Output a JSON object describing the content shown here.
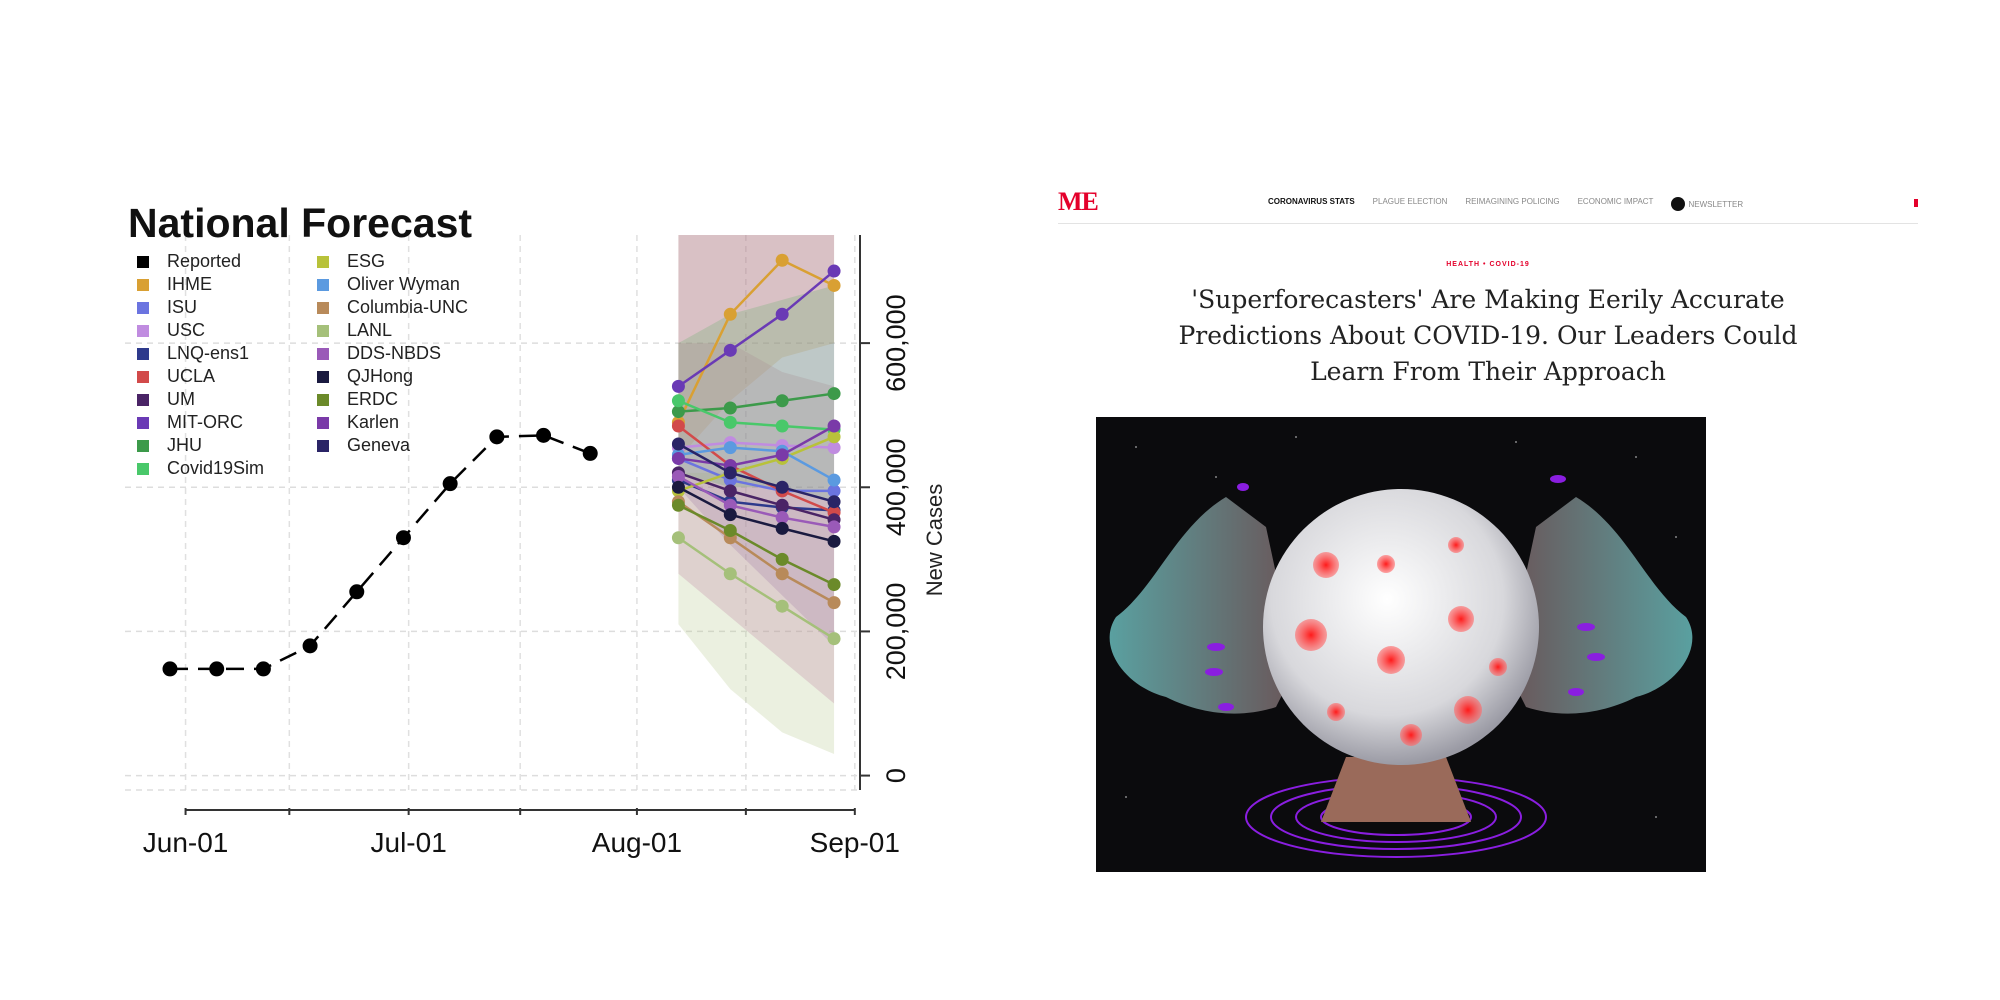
{
  "chart_data": {
    "type": "line",
    "title": "National Forecast",
    "ylabel": "New Cases",
    "xlabel": "",
    "x_ticks": [
      "Jun-01",
      "Jul-01",
      "Aug-01",
      "Sep-01"
    ],
    "y_ticks": [
      "0",
      "200,000",
      "400,000",
      "600,000"
    ],
    "xlim": [
      0,
      13.3
    ],
    "ylim": [
      -20000,
      750000
    ],
    "grid": true,
    "legend_position": "top-left",
    "reported": {
      "name": "Reported",
      "color": "#000000",
      "x": [
        0,
        1,
        2,
        3,
        4,
        5,
        6,
        7,
        8,
        9,
        10
      ],
      "y": [
        148000,
        148000,
        148000,
        180000,
        255000,
        330000,
        405000,
        470000,
        472000,
        447000,
        null
      ]
    },
    "forecast_x": [
      9.8,
      10.8,
      11.8,
      12.8
    ],
    "series": [
      {
        "name": "IHME",
        "color": "#d9a033",
        "values": [
          490000,
          640000,
          715000,
          680000
        ]
      },
      {
        "name": "ISU",
        "color": "#6b74e0",
        "values": [
          440000,
          410000,
          395000,
          395000
        ]
      },
      {
        "name": "USC",
        "color": "#c08ce0",
        "values": [
          455000,
          462000,
          458000,
          455000
        ]
      },
      {
        "name": "LNQ-ens1",
        "color": "#2e3a8c",
        "values": [
          410000,
          380000,
          372000,
          368000
        ]
      },
      {
        "name": "UCLA",
        "color": "#d24a4a",
        "values": [
          485000,
          430000,
          395000,
          365000
        ]
      },
      {
        "name": "UM",
        "color": "#4a2466",
        "values": [
          420000,
          395000,
          375000,
          355000
        ]
      },
      {
        "name": "MIT-ORC",
        "color": "#6a3ab5",
        "values": [
          540000,
          590000,
          640000,
          700000
        ]
      },
      {
        "name": "JHU",
        "color": "#3c9a4a",
        "values": [
          505000,
          510000,
          520000,
          530000
        ]
      },
      {
        "name": "Covid19Sim",
        "color": "#49c86a",
        "values": [
          520000,
          490000,
          485000,
          480000
        ]
      },
      {
        "name": "ESG",
        "color": "#b8c23a",
        "values": [
          395000,
          420000,
          440000,
          470000
        ]
      },
      {
        "name": "Oliver Wyman",
        "color": "#5b9ae0",
        "values": [
          445000,
          455000,
          450000,
          410000
        ]
      },
      {
        "name": "Columbia-UNC",
        "color": "#b88a5a",
        "values": [
          380000,
          330000,
          280000,
          240000
        ]
      },
      {
        "name": "LANL",
        "color": "#a5c07a",
        "values": [
          330000,
          280000,
          235000,
          190000
        ]
      },
      {
        "name": "DDS-NBDS",
        "color": "#9a5ab8",
        "values": [
          415000,
          375000,
          358000,
          345000
        ]
      },
      {
        "name": "QJHong",
        "color": "#1a1a40",
        "values": [
          400000,
          362000,
          343000,
          325000
        ]
      },
      {
        "name": "ERDC",
        "color": "#6b8a2a",
        "values": [
          375000,
          340000,
          300000,
          265000
        ]
      },
      {
        "name": "Karlen",
        "color": "#7a3aa8",
        "values": [
          440000,
          430000,
          445000,
          485000
        ]
      },
      {
        "name": "Geneva",
        "color": "#2a2466",
        "values": [
          460000,
          420000,
          400000,
          380000
        ]
      }
    ],
    "bands": [
      {
        "name": "IHME",
        "color": "#e8b050",
        "lower": [
          440000,
          520000,
          580000,
          600000
        ],
        "upper": [
          760000,
          760000,
          760000,
          760000
        ]
      },
      {
        "name": "MIT-ORC",
        "color": "#8a5ab0",
        "lower": [
          400000,
          320000,
          250000,
          180000
        ],
        "upper": [
          760000,
          760000,
          760000,
          760000
        ]
      },
      {
        "name": "LANL",
        "color": "#b8c890",
        "lower": [
          210000,
          120000,
          60000,
          30000
        ],
        "upper": [
          420000,
          420000,
          400000,
          380000
        ]
      },
      {
        "name": "UCLA",
        "color": "#c080a0",
        "lower": [
          280000,
          220000,
          160000,
          100000
        ],
        "upper": [
          600000,
          600000,
          560000,
          540000
        ]
      },
      {
        "name": "JHU",
        "color": "#6ab070",
        "lower": [
          420000,
          400000,
          400000,
          380000
        ],
        "upper": [
          600000,
          640000,
          660000,
          680000
        ]
      }
    ]
  },
  "article": {
    "logo": "ME",
    "nav": [
      "CORONAVIRUS STATS",
      "PLAGUE ELECTION",
      "REIMAGINING POLICING",
      "ECONOMIC IMPACT"
    ],
    "newsletter": "NEWSLETTER",
    "kicker": "HEALTH • COVID-19",
    "headline_lines": [
      "'Superforecasters' Are Making Eerily Accurate",
      "Predictions About COVID-19. Our Leaders Could",
      "Learn From Their Approach"
    ],
    "colors": {
      "brand": "#e4002b",
      "virus": "#ff2020",
      "nails": "#8a1ee0",
      "hands": "#5aa0a0"
    }
  }
}
